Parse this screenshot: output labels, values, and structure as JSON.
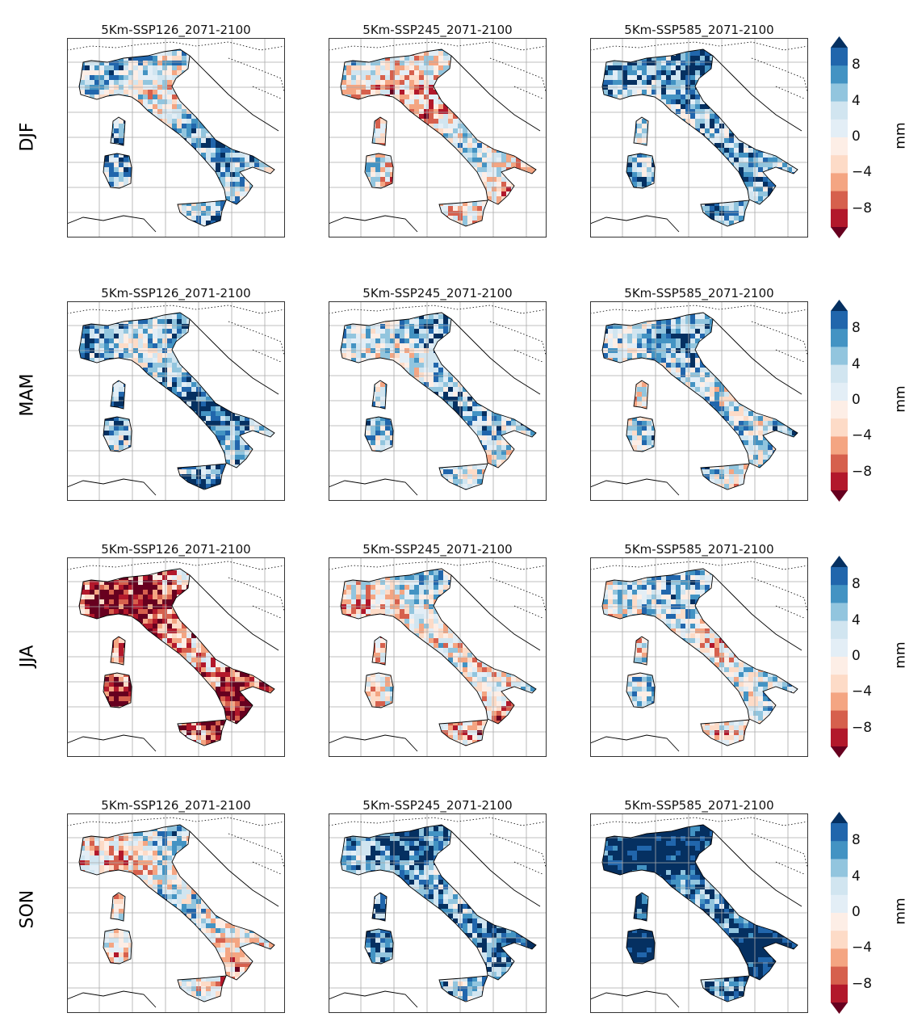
{
  "rows": [
    "DJF",
    "MAM",
    "JJA",
    "SON"
  ],
  "columns": [
    "5Km-SSP126_2071-2100",
    "5Km-SSP245_2071-2100",
    "5Km-SSP585_2071-2100"
  ],
  "colorbar": {
    "unit": "mm",
    "range": [
      -10,
      10
    ],
    "step": 2,
    "extend": "both",
    "tick_labels": [
      "8",
      "4",
      "0",
      "−4",
      "−8"
    ],
    "ticks": [
      8,
      4,
      0,
      -4,
      -8
    ],
    "colors": [
      "#67001f",
      "#b2182b",
      "#d6604d",
      "#f4a582",
      "#fddbc7",
      "#fdeee6",
      "#e3eef6",
      "#d1e5f0",
      "#92c5de",
      "#4393c3",
      "#2166ac",
      "#053061"
    ],
    "colormap": "RdBu"
  }
}
